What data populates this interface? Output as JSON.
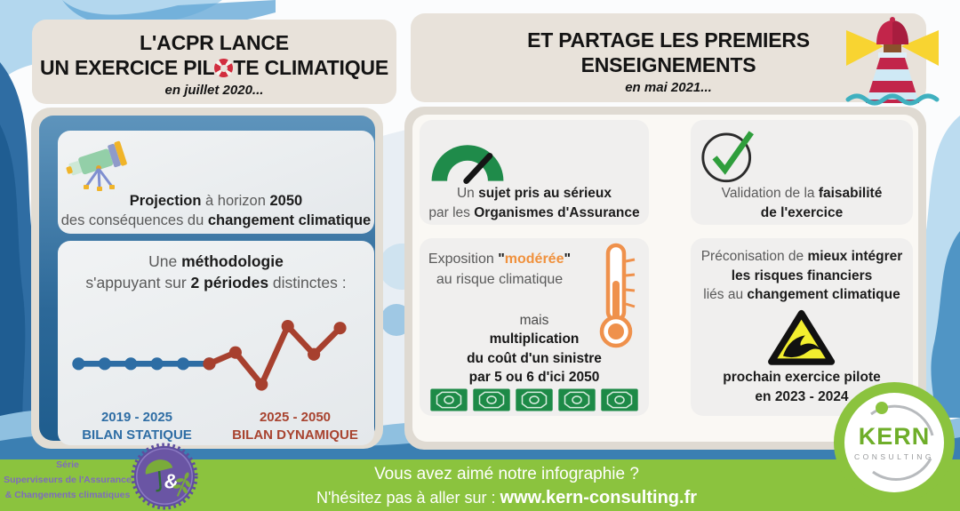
{
  "colors": {
    "accent_green": "#8bc33e",
    "chart_blue": "#2d6da4",
    "chart_red": "#a7402e",
    "gauge_green": "#1f8b4a",
    "check_green": "#2f9e3c",
    "thermo_orange": "#ef914c",
    "money_green": "#1d8a47",
    "warning_yellow": "#f2ee2f",
    "badge_purple": "#6a55a4",
    "kern_green": "#6fae2a"
  },
  "left_panel": {
    "title": {
      "line1": "L'ACPR LANCE",
      "line2_before_icon": "UN EXERCICE PIL",
      "line2_after_icon": "TE CLIMATIQUE",
      "date": "en juillet 2020..."
    },
    "projection_card": {
      "seg1_bold": "Projection",
      "seg2": " à horizon ",
      "seg3_bold": "2050",
      "seg4": "des conséquences du ",
      "seg5_bold": "changement climatique"
    },
    "method_card": {
      "seg1": "Une ",
      "seg2_bold": "méthodologie",
      "seg3": "s'appuyant sur ",
      "seg4_bold": "2 périodes",
      "seg5": " distinctes :",
      "static_period": "2019 - 2025",
      "static_label": "BILAN STATIQUE",
      "dynamic_period": "2025 - 2050",
      "dynamic_label": "BILAN DYNAMIQUE"
    }
  },
  "right_panel": {
    "title": {
      "line1": "ET PARTAGE LES PREMIERS",
      "line2": "ENSEIGNEMENTS",
      "date": "en mai 2021..."
    },
    "gauge_card": {
      "seg1": "Un ",
      "seg2_bold": "sujet pris au sérieux",
      "seg3": "par les ",
      "seg4_bold": "Organismes d'Assurance"
    },
    "check_card": {
      "seg1": "Validation de la ",
      "seg2_bold": "faisabilité",
      "seg3_bold": "de l'exercice"
    },
    "exposure_card": {
      "seg1": "Exposition ",
      "quote_open": "\"",
      "highlight_bold": "modérée",
      "quote_close": "\"",
      "seg2": "au risque climatique",
      "seg3": "mais",
      "seg4_bold": "multiplication",
      "seg5_bold": "du coût d'un sinistre",
      "seg6_bold": "par 5 ou 6 d'ici 2050",
      "banknote_count": 5
    },
    "advice_card": {
      "seg1": "Préconisation de ",
      "seg2_bold": "mieux intégrer",
      "seg3_bold": "les risques financiers",
      "seg4": "liés au ",
      "seg5_bold": "changement climatique",
      "seg6_bold": "prochain exercice pilote",
      "seg7_bold": "en 2023 - 2024"
    }
  },
  "footer": {
    "line1": "Vous avez aimé notre infographie ?",
    "line2_prefix": "N'hésitez pas à aller sur : ",
    "url_bold": "www.kern-consulting.fr"
  },
  "series_badge": {
    "line1": "Série",
    "line2": "Superviseurs de l'Assurance",
    "line3": "& Changements climatiques",
    "ampersand": "&"
  },
  "logo": {
    "name": "KERN",
    "subtitle": "CONSULTING"
  },
  "chart_data": {
    "type": "line",
    "title": "",
    "xlabel": "",
    "ylabel": "",
    "grid": false,
    "legend_position": "below",
    "series": [
      {
        "name": "2019 - 2025 BILAN STATIQUE",
        "color": "#2d6da4",
        "x": [
          0,
          1,
          2,
          3,
          4,
          5
        ],
        "y": [
          50,
          50,
          50,
          50,
          50,
          50
        ]
      },
      {
        "name": "2025 - 2050 BILAN DYNAMIQUE",
        "color": "#a7402e",
        "x": [
          5,
          6,
          7,
          8,
          9,
          10
        ],
        "y": [
          50,
          62,
          28,
          90,
          60,
          88
        ]
      }
    ]
  }
}
